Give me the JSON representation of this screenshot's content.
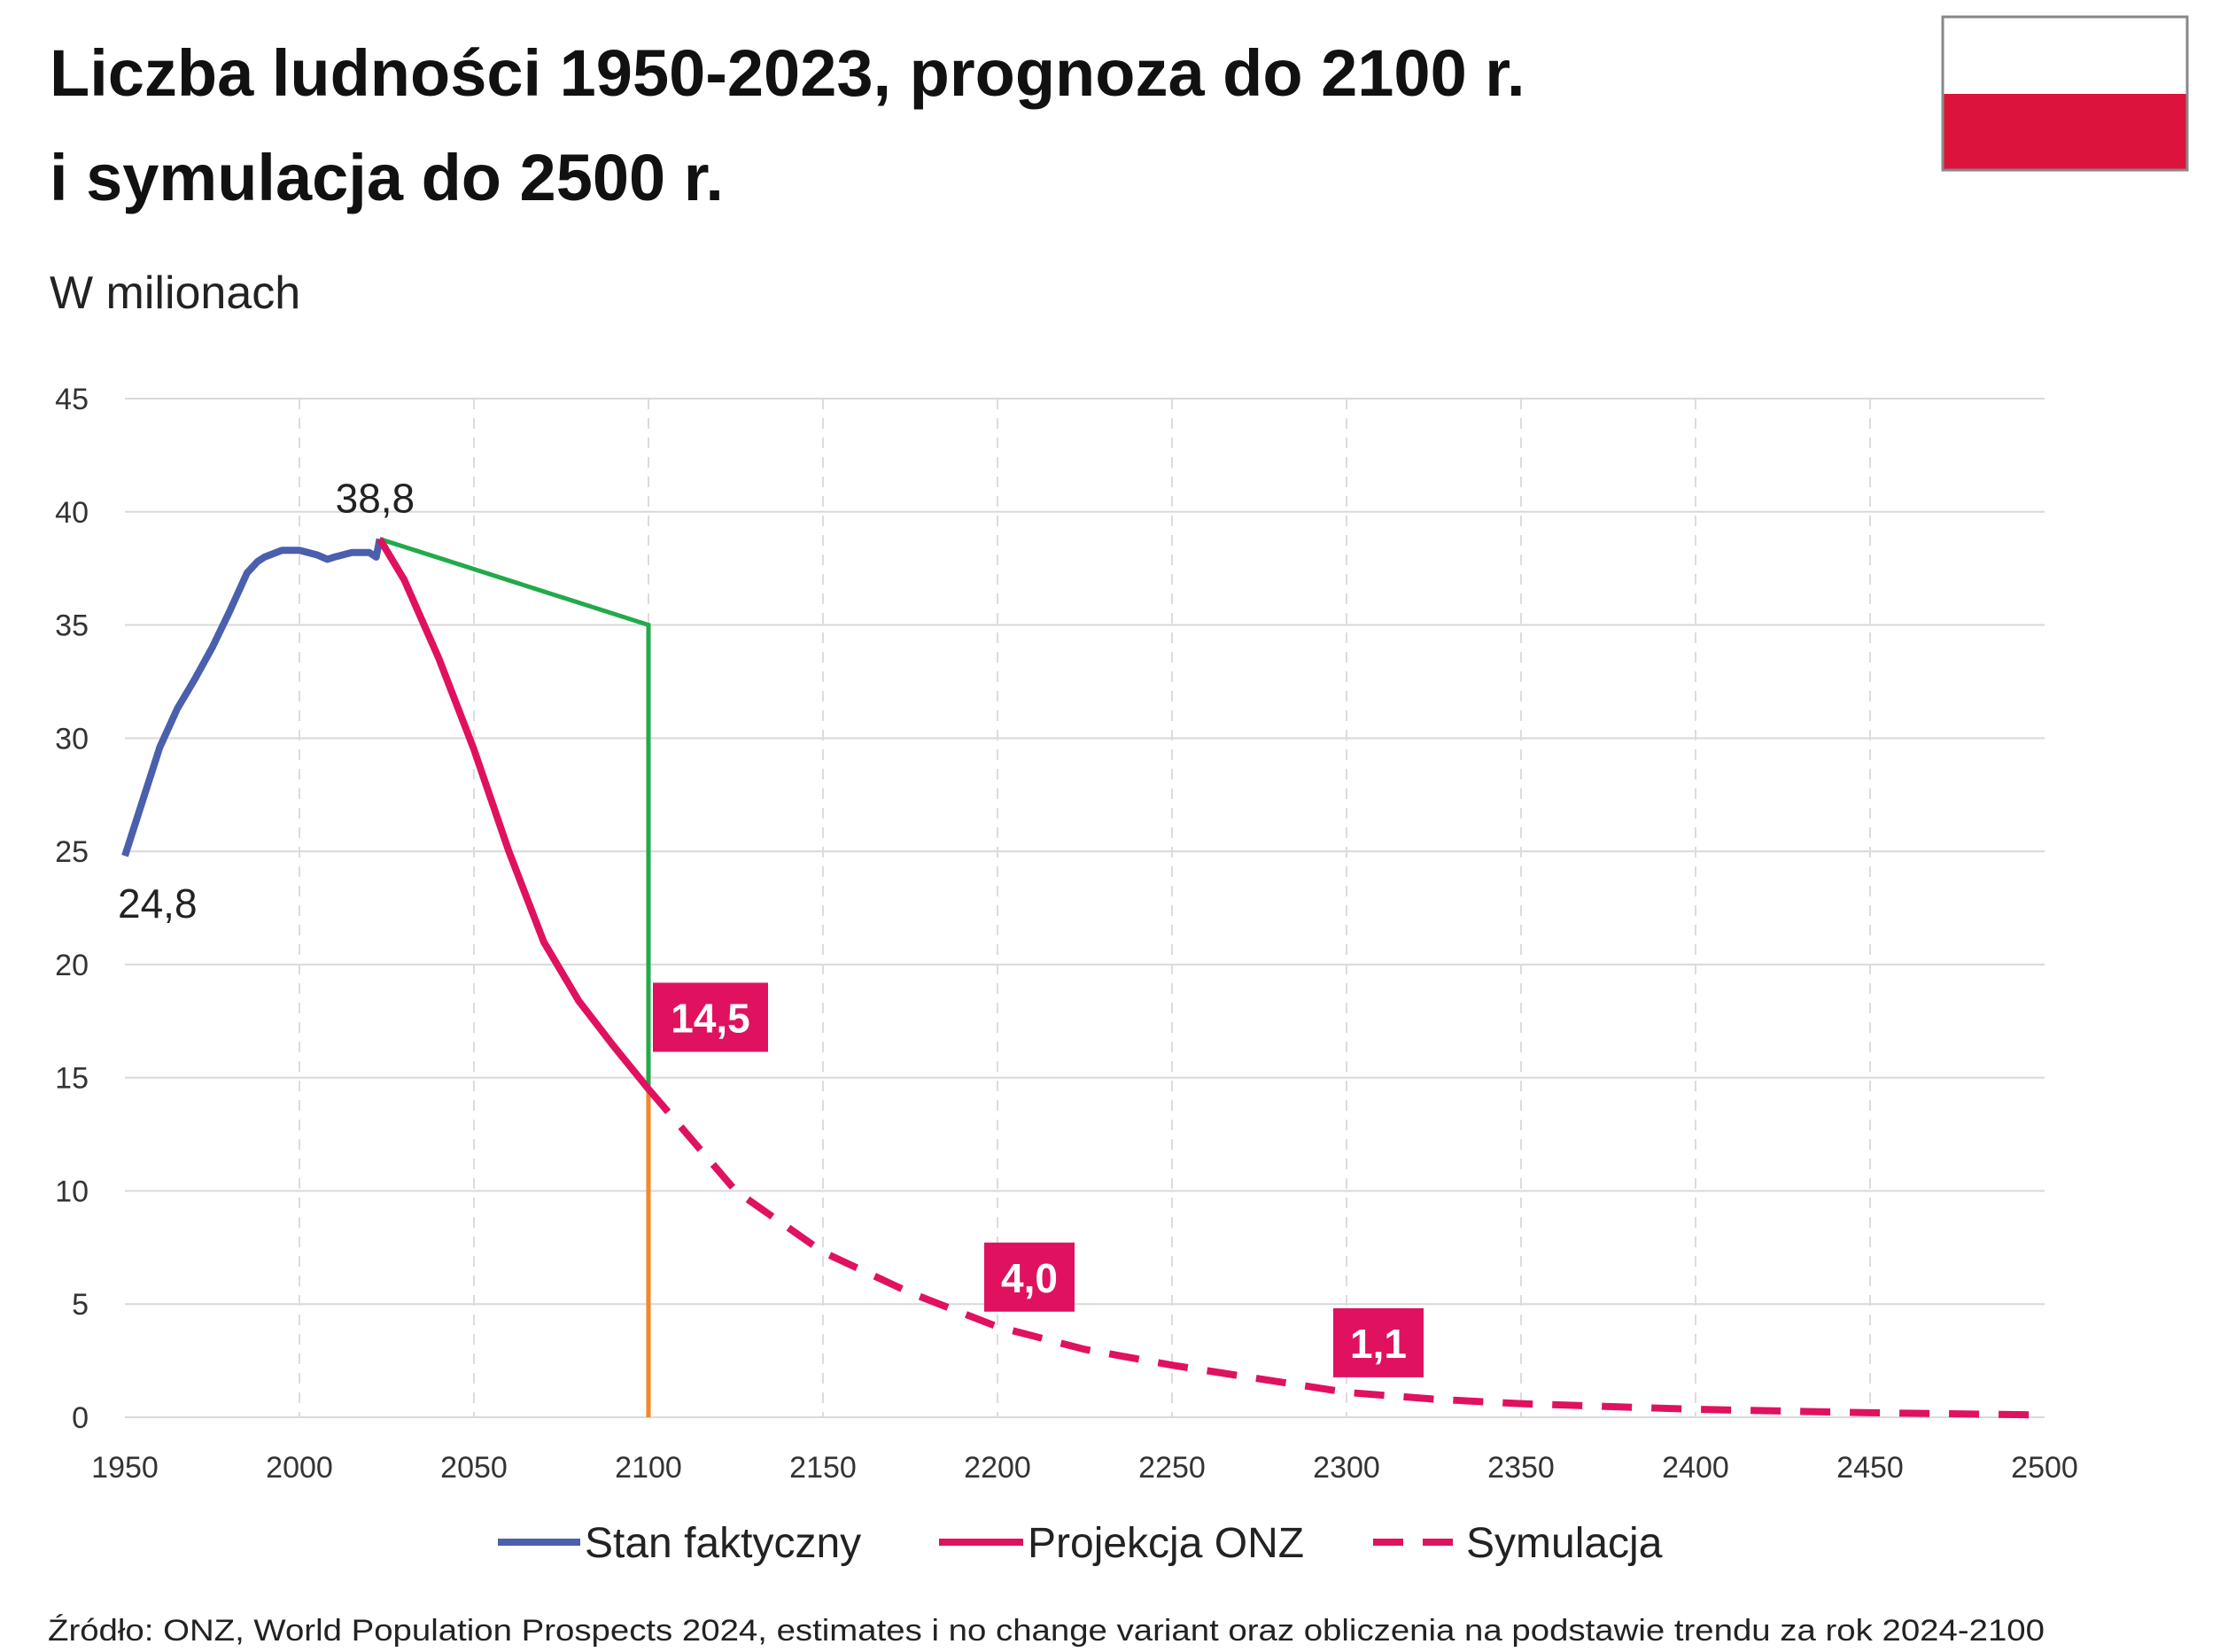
{
  "title_line1": "Liczba ludności 1950-2023, prognoza do 2100 r.",
  "title_line2": "i symulacja do 2500 r.",
  "unit": "W milionach",
  "source": "Źródło: ONZ, World Population Prospects 2024, estimates i no change variant oraz obliczenia na podstawie trendu za rok 2024-2100",
  "flag": {
    "top": "#ffffff",
    "bottom": "#dc143c"
  },
  "chart_data": {
    "type": "line",
    "xlim": [
      1950,
      2500
    ],
    "ylim": [
      0,
      45
    ],
    "xticks": [
      "1950",
      "2000",
      "2050",
      "2100",
      "2150",
      "2200",
      "2250",
      "2300",
      "2350",
      "2400",
      "2450",
      "2500"
    ],
    "yticks": [
      "0",
      "5",
      "10",
      "15",
      "20",
      "25",
      "30",
      "35",
      "40",
      "45"
    ],
    "series": [
      {
        "name": "Stan faktyczny",
        "color": "#4a5fae",
        "dash": false,
        "x": [
          1950,
          1955,
          1960,
          1965,
          1970,
          1975,
          1980,
          1985,
          1988,
          1990,
          1995,
          2000,
          2005,
          2008,
          2010,
          2015,
          2020,
          2022,
          2023
        ],
        "y": [
          24.8,
          27.2,
          29.6,
          31.3,
          32.6,
          34.0,
          35.6,
          37.3,
          37.8,
          38.0,
          38.3,
          38.3,
          38.1,
          37.9,
          38.0,
          38.2,
          38.2,
          38.0,
          38.8
        ]
      },
      {
        "name": "Projekcja ONZ",
        "color": "#e0115f",
        "dash": false,
        "x": [
          2023,
          2030,
          2040,
          2050,
          2060,
          2070,
          2080,
          2090,
          2100
        ],
        "y": [
          38.8,
          37.0,
          33.5,
          29.5,
          25.0,
          21.0,
          18.4,
          16.4,
          14.5
        ]
      },
      {
        "name": "Symulacja",
        "color": "#e0115f",
        "dash": true,
        "x": [
          2100,
          2125,
          2150,
          2175,
          2200,
          2225,
          2250,
          2275,
          2300,
          2325,
          2350,
          2400,
          2450,
          2500
        ],
        "y": [
          14.5,
          10.0,
          7.3,
          5.5,
          4.0,
          3.0,
          2.3,
          1.7,
          1.1,
          0.8,
          0.6,
          0.35,
          0.2,
          0.1
        ]
      }
    ],
    "annotations": [
      {
        "x": 1950,
        "y": 24.8,
        "text": "24,8",
        "boxed": false
      },
      {
        "x": 2023,
        "y": 38.8,
        "text": "38,8",
        "boxed": false
      },
      {
        "x": 2100,
        "y": 14.5,
        "text": "14,5",
        "boxed": true
      },
      {
        "x": 2200,
        "y": 4.0,
        "text": "4,0",
        "boxed": true
      },
      {
        "x": 2300,
        "y": 1.1,
        "text": "1,1",
        "boxed": true
      }
    ],
    "guides": [
      {
        "color": "#22aa4a",
        "x": [
          2023,
          2100,
          2100
        ],
        "y": [
          38.8,
          35,
          14.5
        ]
      },
      {
        "color": "#f5862a",
        "x": [
          2100,
          2100
        ],
        "y": [
          14.5,
          0
        ]
      }
    ],
    "legend": "bottom"
  }
}
